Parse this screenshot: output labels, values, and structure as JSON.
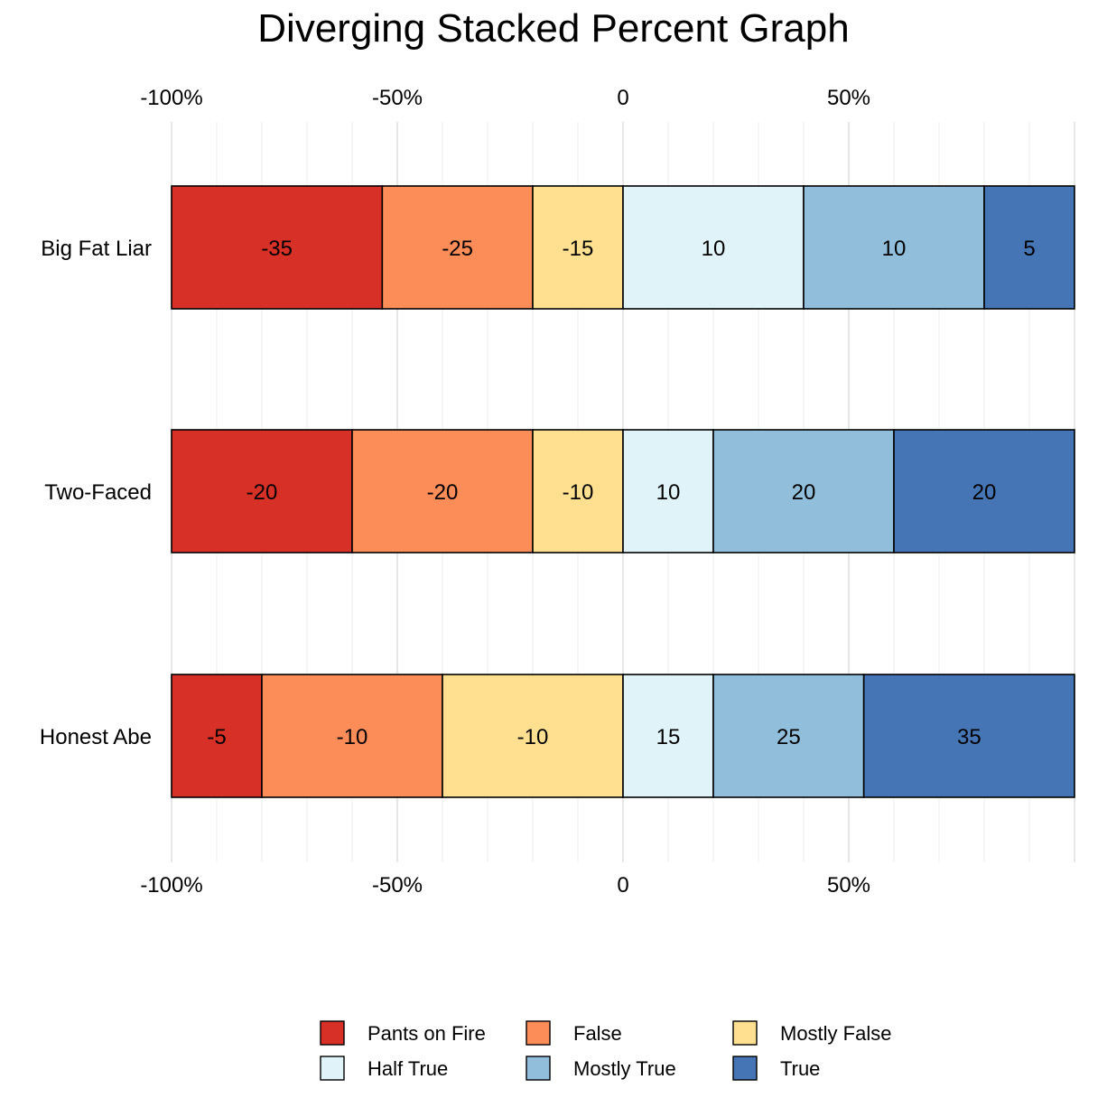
{
  "chart_data": {
    "type": "bar",
    "orientation": "horizontal",
    "stacking": "diverging",
    "title": "Diverging Stacked Percent Graph",
    "xlabel": "",
    "ylabel": "",
    "xlim": [
      -100,
      100
    ],
    "x_ticks": [
      {
        "value": -100,
        "label": "-100%"
      },
      {
        "value": -50,
        "label": "-50%"
      },
      {
        "value": 0,
        "label": "0"
      },
      {
        "value": 50,
        "label": "50%"
      }
    ],
    "x_axis_position": "top and bottom",
    "grid": true,
    "legend_position": "bottom",
    "categories": [
      "Big Fat Liar",
      "Two-Faced",
      "Honest Abe"
    ],
    "series": [
      {
        "name": "Pants on Fire",
        "color": "#D73027",
        "side": "negative",
        "values": [
          -35,
          -20,
          -5
        ],
        "labels": [
          "-35",
          "-20",
          "-5"
        ]
      },
      {
        "name": "False",
        "color": "#FC8D59",
        "side": "negative",
        "values": [
          -25,
          -20,
          -10
        ],
        "labels": [
          "-25",
          "-20",
          "-10"
        ]
      },
      {
        "name": "Mostly False",
        "color": "#FEE090",
        "side": "negative",
        "values": [
          -15,
          -10,
          -10
        ],
        "labels": [
          "-15",
          "-10",
          "-10"
        ]
      },
      {
        "name": "Half True",
        "color": "#E0F3F8",
        "side": "positive",
        "values": [
          10,
          10,
          15
        ],
        "labels": [
          "10",
          "10",
          "15"
        ]
      },
      {
        "name": "Mostly True",
        "color": "#91BFDB",
        "side": "positive",
        "values": [
          10,
          20,
          25
        ],
        "labels": [
          "10",
          "20",
          "25"
        ]
      },
      {
        "name": "True",
        "color": "#4575B4",
        "side": "positive",
        "values": [
          5,
          20,
          35
        ],
        "labels": [
          "5",
          "20",
          "35"
        ]
      }
    ]
  }
}
